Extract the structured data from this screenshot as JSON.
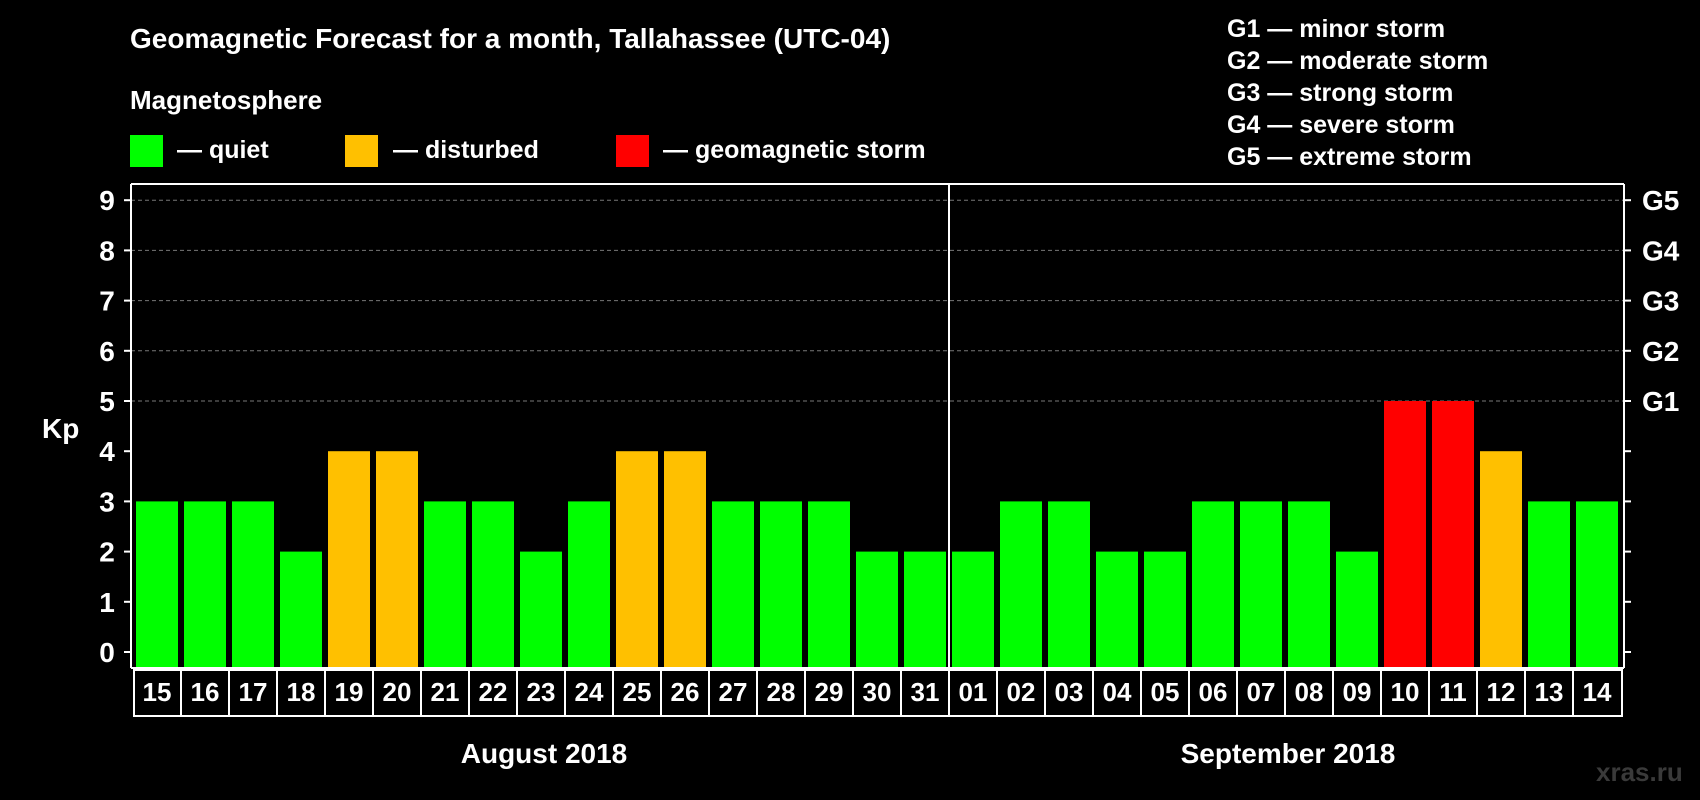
{
  "colors": {
    "quiet": "#00ff00",
    "disturbed": "#ffc000",
    "storm": "#ff0000",
    "grid": "#777777",
    "axis": "#ffffff"
  },
  "legend": {
    "heading": "Magnetosphere",
    "quiet": "— quiet",
    "disturbed": "— disturbed",
    "storm": "— geomagnetic storm"
  },
  "g_scale": [
    "G1 — minor storm",
    "G2 — moderate storm",
    "G3 — strong storm",
    "G4 — severe storm",
    "G5 — extreme storm"
  ],
  "watermark": "xras.ru",
  "chart_data": {
    "type": "bar",
    "title": "Geomagnetic Forecast for a month, Tallahassee (UTC-04)",
    "ylabel": "Kp",
    "ylim": [
      0,
      9
    ],
    "yticks": [
      0,
      1,
      2,
      3,
      4,
      5,
      6,
      7,
      8,
      9
    ],
    "right_ticks": [
      {
        "kp": 5,
        "label": "G1"
      },
      {
        "kp": 6,
        "label": "G2"
      },
      {
        "kp": 7,
        "label": "G3"
      },
      {
        "kp": 8,
        "label": "G4"
      },
      {
        "kp": 9,
        "label": "G5"
      }
    ],
    "categories": [
      "15",
      "16",
      "17",
      "18",
      "19",
      "20",
      "21",
      "22",
      "23",
      "24",
      "25",
      "26",
      "27",
      "28",
      "29",
      "30",
      "31",
      "01",
      "02",
      "03",
      "04",
      "05",
      "06",
      "07",
      "08",
      "09",
      "10",
      "11",
      "12",
      "13",
      "14"
    ],
    "values": [
      3,
      3,
      3,
      2,
      4,
      4,
      3,
      3,
      2,
      3,
      4,
      4,
      3,
      3,
      3,
      2,
      2,
      2,
      3,
      3,
      2,
      2,
      3,
      3,
      3,
      2,
      5,
      5,
      4,
      3,
      3
    ],
    "levels": [
      "quiet",
      "quiet",
      "quiet",
      "quiet",
      "disturbed",
      "disturbed",
      "quiet",
      "quiet",
      "quiet",
      "quiet",
      "disturbed",
      "disturbed",
      "quiet",
      "quiet",
      "quiet",
      "quiet",
      "quiet",
      "quiet",
      "quiet",
      "quiet",
      "quiet",
      "quiet",
      "quiet",
      "quiet",
      "quiet",
      "quiet",
      "storm",
      "storm",
      "disturbed",
      "quiet",
      "quiet"
    ],
    "months": [
      {
        "label": "August 2018",
        "first_index": 0,
        "count": 17
      },
      {
        "label": "September 2018",
        "first_index": 17,
        "count": 14
      }
    ]
  }
}
